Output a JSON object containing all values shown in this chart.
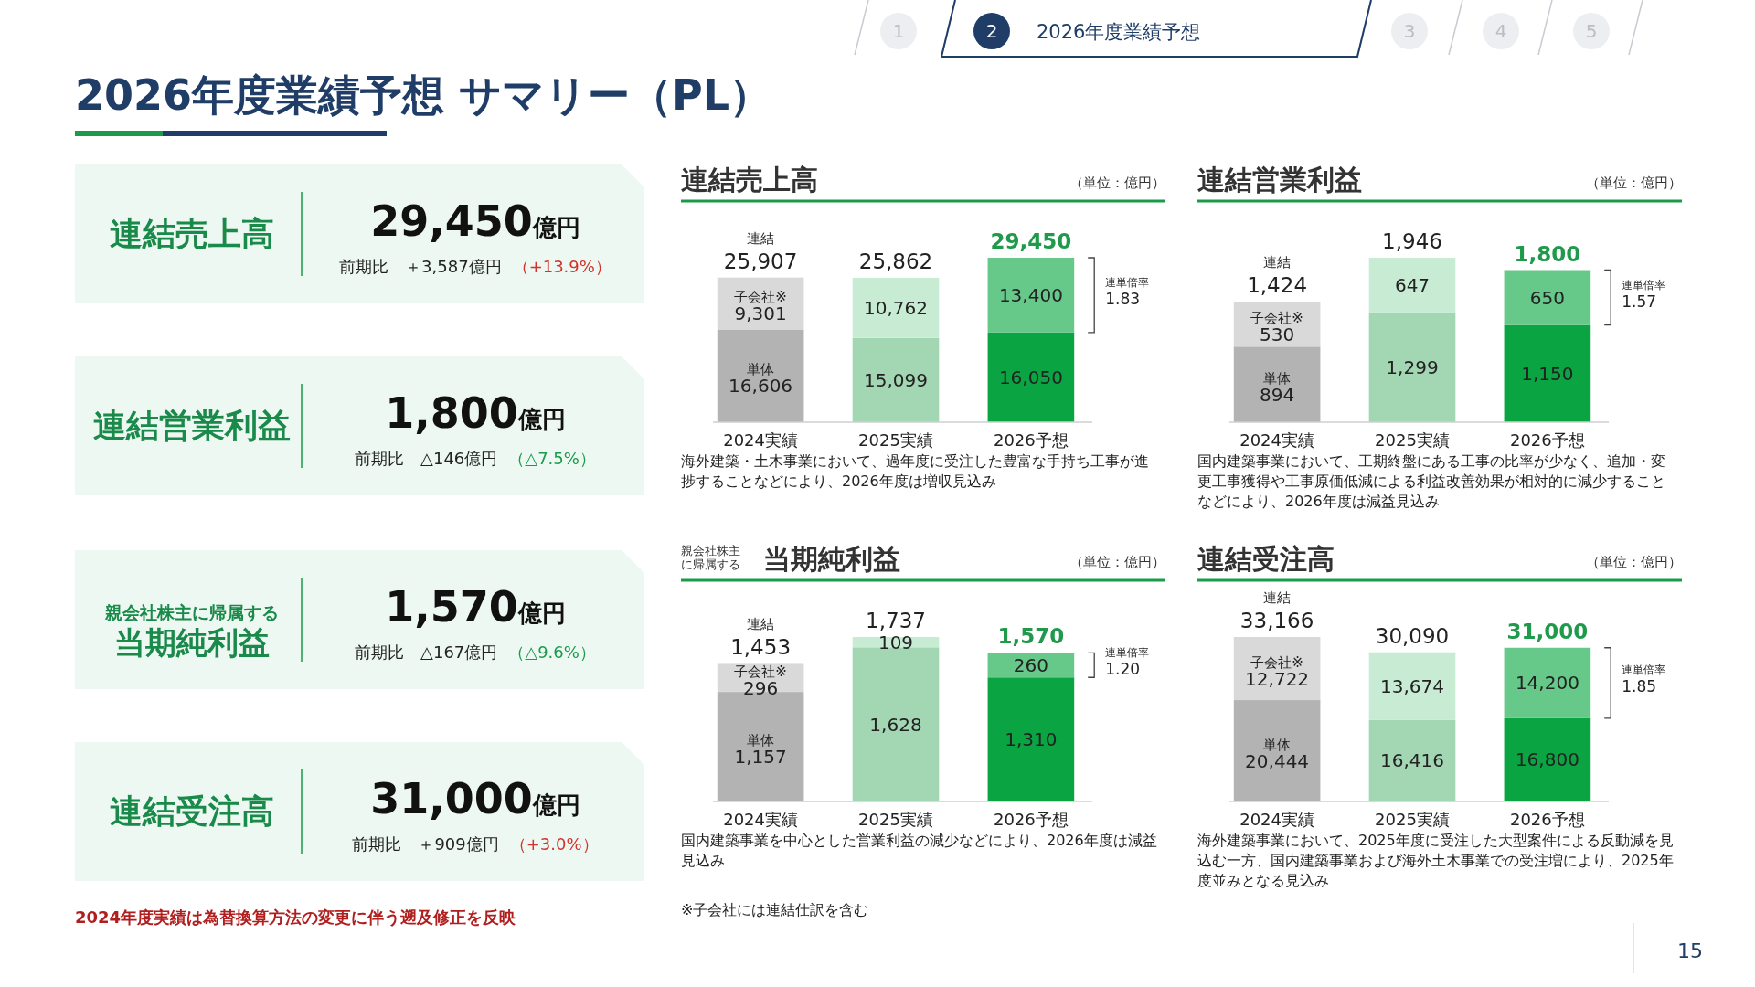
{
  "chart_data": [
    {
      "type": "other",
      "title": "2026年度業績予想 サマリー（PL）",
      "categories": [
        "連結売上高",
        "連結営業利益",
        "当期純利益",
        "連結受注高"
      ],
      "ylabel": "億円",
      "annotations": [
        "前期比　＋3,587億円",
        "（+13.9%）",
        "前期比　△146億円",
        "（△7.5%）",
        "前期比　△167億円",
        "（△9.6%）",
        "前期比　＋909億円",
        "（+3.0%）",
        "2024年度実績は為替換算方法の変更に伴う遡及修正を反映",
        "1",
        "2",
        "2026年度業績予想",
        "3",
        "4",
        "5",
        "15",
        "親会社株主に帰属する",
        "29,450",
        "1,800",
        "1,570",
        "31,000"
      ]
    },
    {
      "type": "bar",
      "stacked": true,
      "title": "連結売上高",
      "categories": [
        "2024実績",
        "2025実績",
        "2026予想"
      ],
      "totals": [
        "25,907",
        "25,862",
        "29,450"
      ],
      "series": [
        {
          "name": "単体",
          "colors": [
            "#b3b3b3",
            "#a3d6b3",
            "#0aa443"
          ],
          "values": [
            16606,
            15099,
            16050
          ],
          "value_labels": [
            "16,606",
            "15,099",
            "16,050"
          ]
        },
        {
          "name": "子会社※",
          "colors": [
            "#d9d9d9",
            "#c8ecd3",
            "#66c98a"
          ],
          "values": [
            9301,
            10762,
            13400
          ],
          "value_labels": [
            "9,301",
            "10,762",
            "13,400"
          ]
        }
      ],
      "annotations": [
        "（単位：億円）",
        "連結",
        "連単倍率",
        "1.83",
        "海外建築・土木事業において、過年度に受注した豊富な手持ち工事が進捗することなどにより、2026年度は増収見込み"
      ]
    },
    {
      "type": "bar",
      "stacked": true,
      "title": "連結営業利益",
      "categories": [
        "2024実績",
        "2025実績",
        "2026予想"
      ],
      "totals": [
        "1,424",
        "1,946",
        "1,800"
      ],
      "series": [
        {
          "name": "単体",
          "colors": [
            "#b3b3b3",
            "#a3d6b3",
            "#0aa443"
          ],
          "values": [
            894,
            1299,
            1150
          ],
          "value_labels": [
            "894",
            "1,299",
            "1,150"
          ]
        },
        {
          "name": "子会社※",
          "colors": [
            "#d9d9d9",
            "#c8ecd3",
            "#66c98a"
          ],
          "values": [
            530,
            647,
            650
          ],
          "value_labels": [
            "530",
            "647",
            "650"
          ]
        }
      ],
      "annotations": [
        "（単位：億円）",
        "連結",
        "連単倍率",
        "1.57",
        "国内建築事業において、工期終盤にある工事の比率が少なく、追加・変更工事獲得や工事原価低減による利益改善効果が相対的に減少することなどにより、2026年度は減益見込み"
      ]
    },
    {
      "type": "bar",
      "stacked": true,
      "title": "当期純利益",
      "subtitle": "親会社株主に帰属する",
      "categories": [
        "2024実績",
        "2025実績",
        "2026予想"
      ],
      "totals": [
        "1,453",
        "1,737",
        "1,570"
      ],
      "series": [
        {
          "name": "単体",
          "colors": [
            "#b3b3b3",
            "#a3d6b3",
            "#0aa443"
          ],
          "values": [
            1157,
            1628,
            1310
          ],
          "value_labels": [
            "1,157",
            "1,628",
            "1,310"
          ]
        },
        {
          "name": "子会社※",
          "colors": [
            "#d9d9d9",
            "#c8ecd3",
            "#66c98a"
          ],
          "values": [
            296,
            109,
            260
          ],
          "value_labels": [
            "296",
            "109",
            "260"
          ]
        }
      ],
      "annotations": [
        "（単位：億円）",
        "連結",
        "連単倍率",
        "1.20",
        "国内建築事業を中心とした営業利益の減少などにより、2026年度は減益見込み",
        "※子会社には連結仕訳を含む"
      ]
    },
    {
      "type": "bar",
      "stacked": true,
      "title": "連結受注高",
      "categories": [
        "2024実績",
        "2025実績",
        "2026予想"
      ],
      "totals": [
        "33,166",
        "30,090",
        "31,000"
      ],
      "series": [
        {
          "name": "単体",
          "colors": [
            "#b3b3b3",
            "#a3d6b3",
            "#0aa443"
          ],
          "values": [
            20444,
            16416,
            16800
          ],
          "value_labels": [
            "20,444",
            "16,416",
            "16,800"
          ]
        },
        {
          "name": "子会社※",
          "colors": [
            "#d9d9d9",
            "#c8ecd3",
            "#66c98a"
          ],
          "values": [
            12722,
            13674,
            14200
          ],
          "value_labels": [
            "12,722",
            "13,674",
            "14,200"
          ]
        }
      ],
      "annotations": [
        "（単位：億円）",
        "連結",
        "連単倍率",
        "1.85",
        "海外建築事業において、2025年度に受注した大型案件による反動減を見込む一方、国内建築事業および海外土木事業での受注増により、2025年度並みとなる見込み"
      ]
    }
  ]
}
